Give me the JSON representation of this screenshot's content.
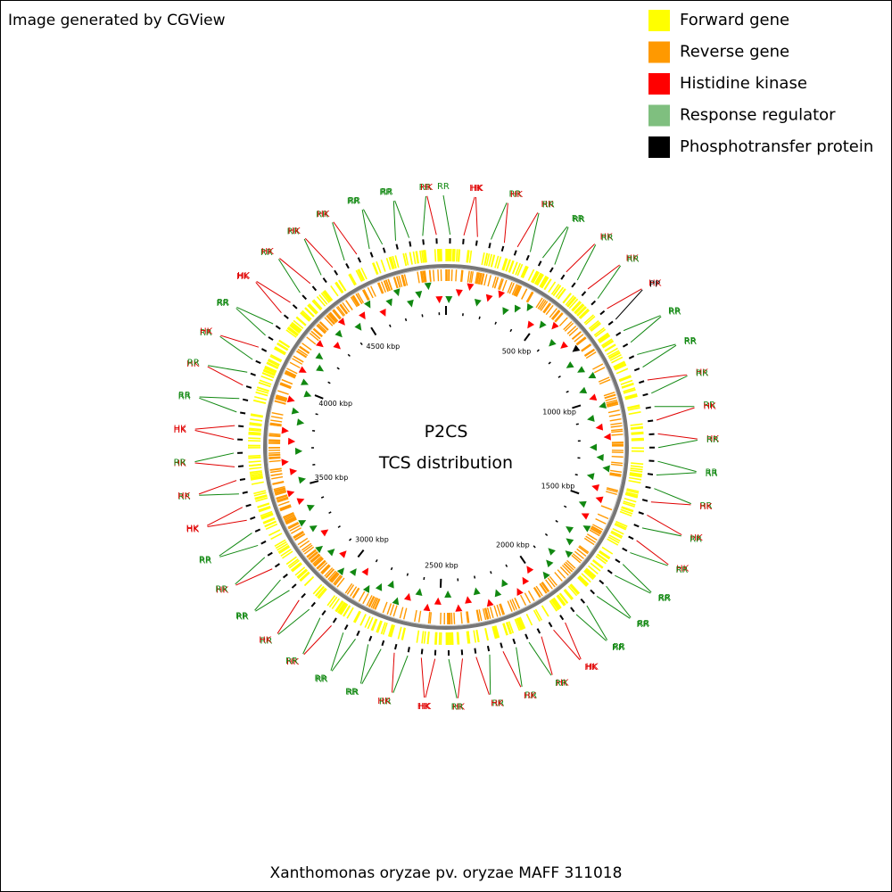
{
  "header": {
    "note": "Image generated by CGView"
  },
  "legend": [
    {
      "label": "Forward gene",
      "color": "#ffff00"
    },
    {
      "label": "Reverse gene",
      "color": "#ff9900"
    },
    {
      "label": "Histidine kinase",
      "color": "#ff0000"
    },
    {
      "label": "Response regulator",
      "color": "#7fbf7f"
    },
    {
      "label": "Phosphotransfer protein",
      "color": "#000000"
    }
  ],
  "map": {
    "title": "P2CS",
    "subtitle": "TCS distribution",
    "scale_labels": [
      "500 kbp",
      "1000 kbp",
      "1500 kbp",
      "2000 kbp",
      "2500 kbp",
      "3000 kbp",
      "3500 kbp",
      "4000 kbp",
      "4500 kbp"
    ],
    "features": [
      "RR",
      "HK",
      "HK",
      "RR",
      "HK",
      "HK",
      "RR",
      "RR",
      "RR",
      "HK",
      "RR",
      "HK",
      "RR",
      "HK",
      "PP",
      "RR",
      "RR",
      "RR",
      "RR",
      "HK",
      "RR",
      "RR",
      "HK",
      "HK",
      "RR",
      "RR",
      "RR",
      "RR",
      "HK",
      "HK",
      "RR",
      "HK",
      "RR",
      "RR",
      "RR",
      "RR",
      "RR",
      "RR",
      "RR",
      "HK",
      "HK",
      "HK",
      "RR",
      "RR",
      "HK",
      "RR",
      "HK",
      "HK",
      "RR",
      "HK",
      "HK",
      "RR",
      "HK",
      "RR",
      "RR",
      "RR",
      "RR",
      "HK",
      "RR",
      "RR",
      "HK",
      "RR",
      "RR",
      "HK",
      "RR",
      "RR",
      "RR",
      "HK",
      "HK",
      "RR",
      "HK",
      "HK",
      "RR",
      "HK",
      "HK",
      "RR",
      "RR",
      "HK",
      "RR",
      "RR",
      "HK",
      "RR",
      "RR",
      "HK",
      "HK",
      "RR",
      "HK",
      "RR",
      "HK",
      "RR",
      "HK",
      "RR",
      "RR",
      "RR",
      "RR",
      "RR",
      "HK"
    ]
  },
  "footer": {
    "organism": "Xanthomonas oryzae pv. oryzae MAFF 311018"
  }
}
